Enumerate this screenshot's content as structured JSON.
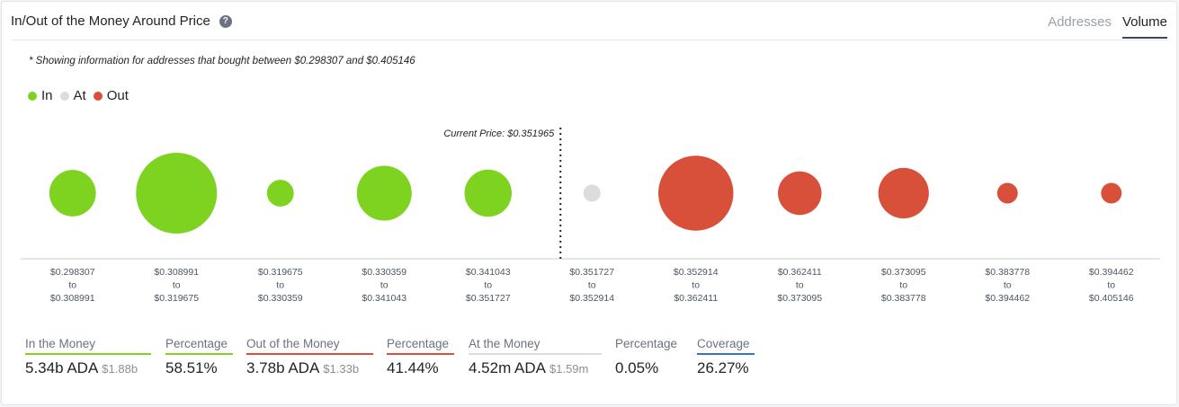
{
  "header": {
    "title": "In/Out of the Money Around Price",
    "help_icon": "question-circle-icon"
  },
  "tabs": [
    {
      "label": "Addresses",
      "active": false
    },
    {
      "label": "Volume",
      "active": true
    }
  ],
  "note": "* Showing information for addresses that bought between $0.298307 and $0.405146",
  "legend": [
    {
      "label": "In",
      "color": "#7ed321"
    },
    {
      "label": "At",
      "color": "#dcdcdc"
    },
    {
      "label": "Out",
      "color": "#d9503a"
    }
  ],
  "chart_data": {
    "type": "scatter",
    "current_price_label": "Current Price: $0.351965",
    "current_price": 0.351965,
    "range_connector": "to",
    "buckets": [
      {
        "from": "$0.298307",
        "to": "$0.308991",
        "status": "in",
        "relative_volume": 0.33
      },
      {
        "from": "$0.308991",
        "to": "$0.319675",
        "status": "in",
        "relative_volume": 1.0
      },
      {
        "from": "$0.319675",
        "to": "$0.330359",
        "status": "in",
        "relative_volume": 0.11
      },
      {
        "from": "$0.330359",
        "to": "$0.341043",
        "status": "in",
        "relative_volume": 0.46
      },
      {
        "from": "$0.341043",
        "to": "$0.351727",
        "status": "in",
        "relative_volume": 0.34
      },
      {
        "from": "$0.351727",
        "to": "$0.352914",
        "status": "at",
        "relative_volume": 0.045
      },
      {
        "from": "$0.352914",
        "to": "$0.362411",
        "status": "out",
        "relative_volume": 0.86
      },
      {
        "from": "$0.362411",
        "to": "$0.373095",
        "status": "out",
        "relative_volume": 0.29
      },
      {
        "from": "$0.373095",
        "to": "$0.383778",
        "status": "out",
        "relative_volume": 0.39
      },
      {
        "from": "$0.383778",
        "to": "$0.394462",
        "status": "out",
        "relative_volume": 0.065
      },
      {
        "from": "$0.394462",
        "to": "$0.405146",
        "status": "out",
        "relative_volume": 0.065
      }
    ]
  },
  "summary": [
    {
      "key": "in_label",
      "label": "In the Money",
      "value": "5.34b ADA",
      "sub": "$1.88b",
      "rule": "#7ed321"
    },
    {
      "key": "in_pct",
      "label": "Percentage",
      "value": "58.51%",
      "sub": "",
      "rule": "#7ed321"
    },
    {
      "key": "out_label",
      "label": "Out of the Money",
      "value": "3.78b ADA",
      "sub": "$1.33b",
      "rule": "#d9503a"
    },
    {
      "key": "out_pct",
      "label": "Percentage",
      "value": "41.44%",
      "sub": "",
      "rule": "#d9503a"
    },
    {
      "key": "at_label",
      "label": "At the Money",
      "value": "4.52m ADA",
      "sub": "$1.59m",
      "rule": "#dcdcdc"
    },
    {
      "key": "at_pct",
      "label": "Percentage",
      "value": "0.05%",
      "sub": "",
      "rule": "#ffffff"
    },
    {
      "key": "coverage",
      "label": "Coverage",
      "value": "26.27%",
      "sub": "",
      "rule": "#3b6fd1"
    }
  ]
}
